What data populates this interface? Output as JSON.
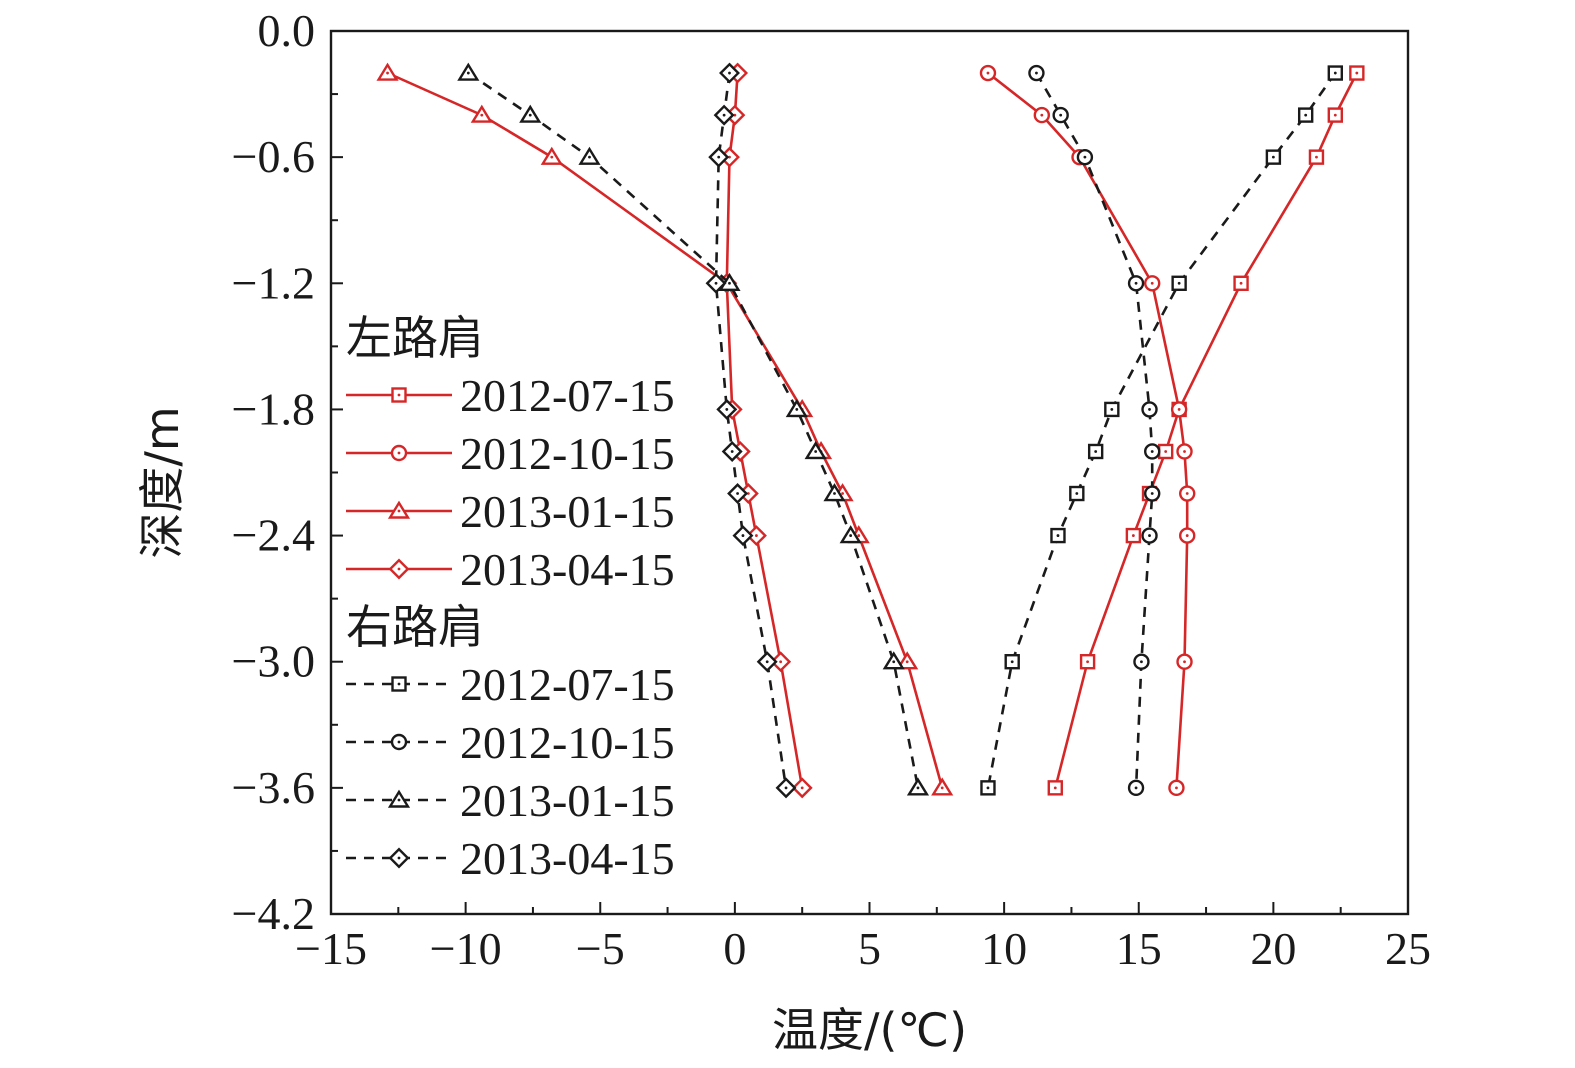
{
  "chart_data": {
    "type": "line",
    "xlabel": "温度/(℃)",
    "ylabel": "深度/m",
    "xlim": [
      -15,
      25
    ],
    "ylim": [
      -4.2,
      0.0
    ],
    "xticks": [
      -15,
      -10,
      -5,
      0,
      5,
      10,
      15,
      20,
      25
    ],
    "yticks": [
      0.0,
      -0.6,
      -1.2,
      -1.8,
      -2.4,
      -3.0,
      -3.6,
      -4.2
    ],
    "xtick_labels": [
      "−15",
      "−10",
      "−5",
      "0",
      "5",
      "10",
      "15",
      "20",
      "25"
    ],
    "ytick_labels": [
      "0.0",
      "−0.6",
      "−1.2",
      "−1.8",
      "−2.4",
      "−3.0",
      "−3.6",
      "−4.2"
    ],
    "grid": false,
    "legend_position": "left",
    "groups": [
      {
        "label": "左路肩",
        "series": [
          {
            "name": "2012-07-15",
            "marker": "square",
            "color": "#d62728",
            "dash": "solid",
            "y": [
              -0.2,
              -0.4,
              -0.6,
              -1.2,
              -1.8,
              -2.0,
              -2.2,
              -2.4,
              -3.0,
              -3.6
            ],
            "x": [
              23.1,
              22.3,
              21.6,
              18.8,
              16.5,
              16.0,
              15.4,
              14.8,
              13.1,
              11.9
            ]
          },
          {
            "name": "2012-10-15",
            "marker": "circle",
            "color": "#d62728",
            "dash": "solid",
            "y": [
              -0.2,
              -0.4,
              -0.6,
              -1.2,
              -1.8,
              -2.0,
              -2.2,
              -2.4,
              -3.0,
              -3.6
            ],
            "x": [
              9.4,
              11.4,
              12.8,
              15.5,
              16.5,
              16.7,
              16.8,
              16.8,
              16.7,
              16.4
            ]
          },
          {
            "name": "2013-01-15",
            "marker": "triangle",
            "color": "#d62728",
            "dash": "solid",
            "y": [
              -0.2,
              -0.4,
              -0.6,
              -1.2,
              -1.8,
              -2.0,
              -2.2,
              -2.4,
              -3.0,
              -3.6
            ],
            "x": [
              -12.9,
              -9.4,
              -6.8,
              -0.3,
              2.5,
              3.2,
              4.0,
              4.6,
              6.4,
              7.7
            ]
          },
          {
            "name": "2013-04-15",
            "marker": "diamond",
            "color": "#d62728",
            "dash": "solid",
            "y": [
              -0.2,
              -0.4,
              -0.6,
              -1.2,
              -1.8,
              -2.0,
              -2.2,
              -2.4,
              -3.0,
              -3.6
            ],
            "x": [
              0.1,
              0.0,
              -0.2,
              -0.3,
              -0.1,
              0.2,
              0.5,
              0.8,
              1.7,
              2.5
            ]
          }
        ]
      },
      {
        "label": "右路肩",
        "series": [
          {
            "name": "2012-07-15",
            "marker": "square",
            "color": "#1a1a1a",
            "dash": "dashed",
            "y": [
              -0.2,
              -0.4,
              -0.6,
              -1.2,
              -1.8,
              -2.0,
              -2.2,
              -2.4,
              -3.0,
              -3.6
            ],
            "x": [
              22.3,
              21.2,
              20.0,
              16.5,
              14.0,
              13.4,
              12.7,
              12.0,
              10.3,
              9.4
            ]
          },
          {
            "name": "2012-10-15",
            "marker": "circle",
            "color": "#1a1a1a",
            "dash": "dashed",
            "y": [
              -0.2,
              -0.4,
              -0.6,
              -1.2,
              -1.8,
              -2.0,
              -2.2,
              -2.4,
              -3.0,
              -3.6
            ],
            "x": [
              11.2,
              12.1,
              13.0,
              14.9,
              15.4,
              15.5,
              15.5,
              15.4,
              15.1,
              14.9
            ]
          },
          {
            "name": "2013-01-15",
            "marker": "triangle",
            "color": "#1a1a1a",
            "dash": "dashed",
            "y": [
              -0.2,
              -0.4,
              -0.6,
              -1.2,
              -1.8,
              -2.0,
              -2.2,
              -2.4,
              -3.0,
              -3.6
            ],
            "x": [
              -9.9,
              -7.6,
              -5.4,
              -0.2,
              2.3,
              3.0,
              3.7,
              4.3,
              5.9,
              6.8
            ]
          },
          {
            "name": "2013-04-15",
            "marker": "diamond",
            "color": "#1a1a1a",
            "dash": "dashed",
            "y": [
              -0.2,
              -0.4,
              -0.6,
              -1.2,
              -1.8,
              -2.0,
              -2.2,
              -2.4,
              -3.0,
              -3.6
            ],
            "x": [
              -0.2,
              -0.4,
              -0.6,
              -0.7,
              -0.3,
              -0.1,
              0.1,
              0.3,
              1.2,
              1.9
            ]
          }
        ]
      }
    ]
  }
}
